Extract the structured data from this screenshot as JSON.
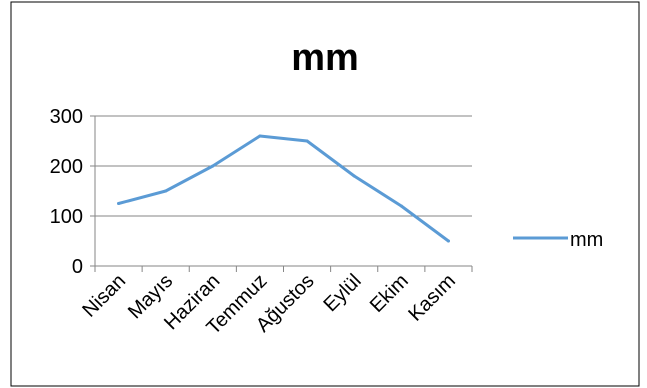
{
  "chart_data": {
    "type": "line",
    "title": "mm",
    "xlabel": "",
    "ylabel": "",
    "categories": [
      "Nisan",
      "Mayıs",
      "Haziran",
      "Temmuz",
      "Ağustos",
      "Eylül",
      "Ekim",
      "Kasım"
    ],
    "series": [
      {
        "name": "mm",
        "values": [
          125,
          150,
          200,
          260,
          250,
          180,
          120,
          50
        ]
      }
    ],
    "ylim": [
      0,
      300
    ],
    "yticks": [
      0,
      100,
      200,
      300
    ],
    "grid": true,
    "legend": "right",
    "colors": {
      "series": "#5B9BD5",
      "grid": "#868686",
      "axis": "#868686",
      "border": "#000000"
    }
  }
}
